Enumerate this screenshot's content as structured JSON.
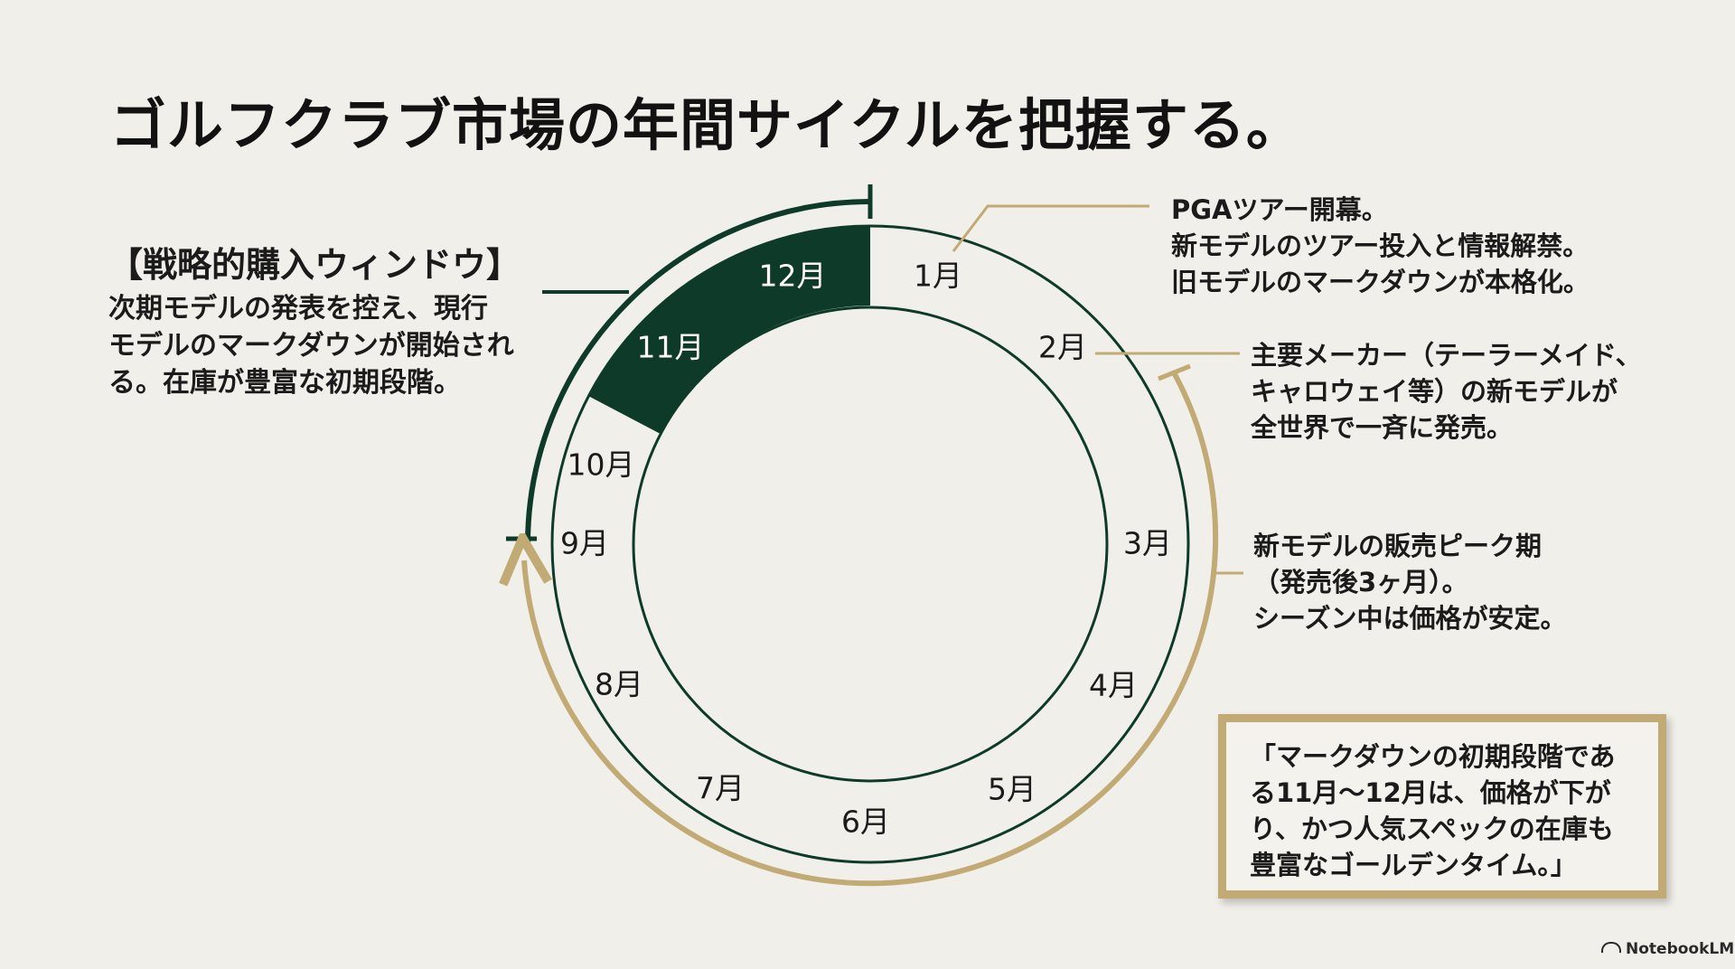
{
  "title": "ゴルフクラブ市場の年間サイクルを把握する。",
  "months": [
    "1月",
    "2月",
    "3月",
    "4月",
    "5月",
    "6月",
    "7月",
    "8月",
    "9月",
    "10月",
    "11月",
    "12月"
  ],
  "highlighted_months": [
    "11月",
    "12月"
  ],
  "colors": {
    "accent_dark_green": "#0e3a2a",
    "gold": "#c2aa74",
    "background": "#f1efe9"
  },
  "window": {
    "heading": "【戦略的購入ウィンドウ】",
    "lines": [
      "次期モデルの発表を控え、現行",
      "モデルのマークダウンが開始され",
      "る。在庫が豊富な初期段階。"
    ]
  },
  "notes": {
    "jan": [
      "PGAツアー開幕。",
      "新モデルのツアー投入と情報解禁。",
      "旧モデルのマークダウンが本格化。"
    ],
    "feb": [
      "主要メーカー（テーラーメイド、",
      "キャロウェイ等）の新モデルが",
      "全世界で一斉に発売。"
    ],
    "peak": [
      "新モデルの販売ピーク期",
      "（発売後3ヶ月）。",
      "シーズン中は価格が安定。"
    ]
  },
  "quote": [
    "「マークダウンの初期段階であ",
    "る11月～12月は、価格が下が",
    "り、かつ人気スペックの在庫も",
    "豊富なゴールデンタイム。」"
  ],
  "brand": "NotebookLM",
  "icons": {
    "brand": "notebooklm-logo-icon"
  }
}
